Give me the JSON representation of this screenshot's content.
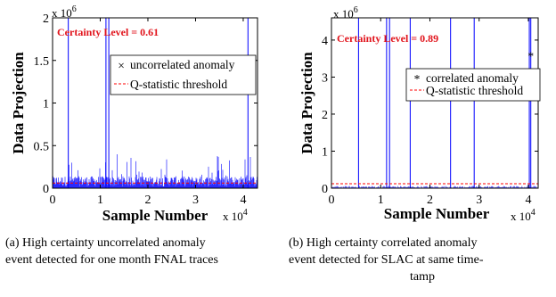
{
  "chart_data": [
    {
      "type": "line",
      "ylabel": "Data Projection",
      "xlabel": "Sample Number",
      "x_multiplier": "x 10^4",
      "y_multiplier": "x 10^6",
      "x_ticks": [
        0,
        1,
        2,
        3,
        4
      ],
      "y_ticks": [
        0,
        0.5,
        1,
        1.5,
        2
      ],
      "y_tick_labels": [
        "0",
        "0.5",
        "1",
        "1.5",
        "2"
      ],
      "xlim": [
        0,
        4.3
      ],
      "ylim": [
        0,
        2
      ],
      "annotation": "Certainty Level = 0.61",
      "legend": [
        "uncorrelated anomaly",
        "Q-statistic threshold"
      ],
      "threshold": 0.06,
      "spikes_x": [
        0.33,
        1.12,
        1.18,
        4.1
      ],
      "series_color": "#0000ff",
      "threshold_color": "#ff0000"
    },
    {
      "type": "line",
      "ylabel": "Data Projection",
      "xlabel": "Sample Number",
      "x_multiplier": "x 10^4",
      "y_multiplier": "x 10^6",
      "x_ticks": [
        0,
        1,
        2,
        3,
        4
      ],
      "y_ticks": [
        0,
        1,
        2,
        3,
        4
      ],
      "y_tick_labels": [
        "0",
        "1",
        "2",
        "3",
        "4"
      ],
      "xlim": [
        0,
        4.2
      ],
      "ylim": [
        0,
        4.6
      ],
      "annotation": "Certainty Level = 0.89",
      "legend": [
        "correlated anomaly",
        "Q-statistic threshold"
      ],
      "threshold": 0.12,
      "anomaly_marker": {
        "x": 4.05,
        "y": 3.6
      },
      "spikes_x": [
        0.55,
        1.12,
        1.18,
        1.6,
        2.42,
        2.9,
        4.02,
        4.05
      ],
      "series_color": "#0000ff",
      "threshold_color": "#ff0000",
      "marker_color": "#ff0000"
    }
  ],
  "captions": {
    "left_line1": "(a) High certainty uncorrelated anomaly",
    "left_line2": "event detected for one month FNAL traces",
    "right_line1": "(b) High certainty correlated anomaly",
    "right_line2": "event detected for SLAC at same time-",
    "right_line3": "tamp"
  }
}
